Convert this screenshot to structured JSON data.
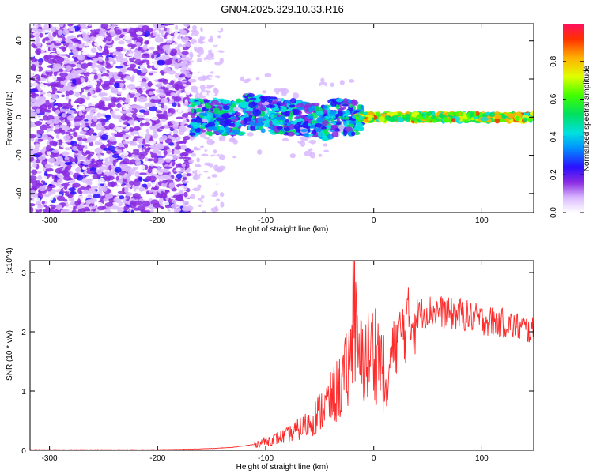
{
  "title": "GN04.2025.329.10.33.R16",
  "chart_data": [
    {
      "type": "heatmap",
      "name": "spectrogram",
      "xlabel": "Height of straight line (km)",
      "ylabel": "Frequency (Hz)",
      "xlim": [
        -318,
        148
      ],
      "ylim": [
        -50,
        49
      ],
      "xticks": [
        -300,
        -200,
        -100,
        0,
        100
      ],
      "yticks": [
        -40,
        -20,
        0,
        20,
        40
      ],
      "colorbar": {
        "label": "Normalized spectral amplitude",
        "range": [
          0,
          1
        ],
        "ticks": [
          0.0,
          0.2,
          0.4,
          0.6,
          0.8
        ]
      },
      "regions": [
        {
          "x": [
            -318,
            -170
          ],
          "freq": [
            -50,
            49
          ],
          "level": "noise, amplitude ~0.05-0.25"
        },
        {
          "x": [
            -170,
            -140
          ],
          "freq": [
            -50,
            49
          ],
          "level": "sparse noise, amplitude ~0.05-0.1"
        },
        {
          "x": [
            -170,
            -10
          ],
          "freq": [
            -15,
            15
          ],
          "level": "scattered signal, amplitude ~0.2-0.6"
        },
        {
          "x": [
            -10,
            148
          ],
          "freq": [
            -2,
            2
          ],
          "level": "steady carrier near 0 Hz, amplitude ~0.5-1.0"
        }
      ]
    },
    {
      "type": "line",
      "name": "snr",
      "xlabel": "Height of straight line (km)",
      "ylabel": "SNR (10 * v/v)",
      "yscale_label": "(x10^4)",
      "xlim": [
        -318,
        148
      ],
      "ylim": [
        0,
        3.2
      ],
      "xticks": [
        -300,
        -200,
        -100,
        0,
        100
      ],
      "yticks": [
        0,
        1,
        2,
        3
      ],
      "series_color": "#ff2a2a",
      "series": [
        {
          "name": "SNR",
          "x": [
            -318,
            -250,
            -200,
            -170,
            -150,
            -130,
            -110,
            -100,
            -90,
            -80,
            -70,
            -60,
            -50,
            -40,
            -30,
            -25,
            -20,
            -18,
            -15,
            -10,
            -5,
            0,
            5,
            10,
            12,
            15,
            20,
            30,
            40,
            50,
            60,
            70,
            80,
            100,
            120,
            140,
            148
          ],
          "y": [
            0.01,
            0.01,
            0.01,
            0.02,
            0.03,
            0.05,
            0.1,
            0.15,
            0.2,
            0.25,
            0.35,
            0.45,
            0.65,
            0.85,
            1.1,
            1.3,
            1.6,
            2.3,
            1.5,
            1.5,
            1.6,
            1.7,
            1.6,
            1.2,
            0.8,
            1.5,
            1.8,
            2.1,
            2.3,
            2.35,
            2.35,
            2.3,
            2.3,
            2.2,
            2.15,
            2.05,
            2.0
          ]
        }
      ]
    }
  ]
}
